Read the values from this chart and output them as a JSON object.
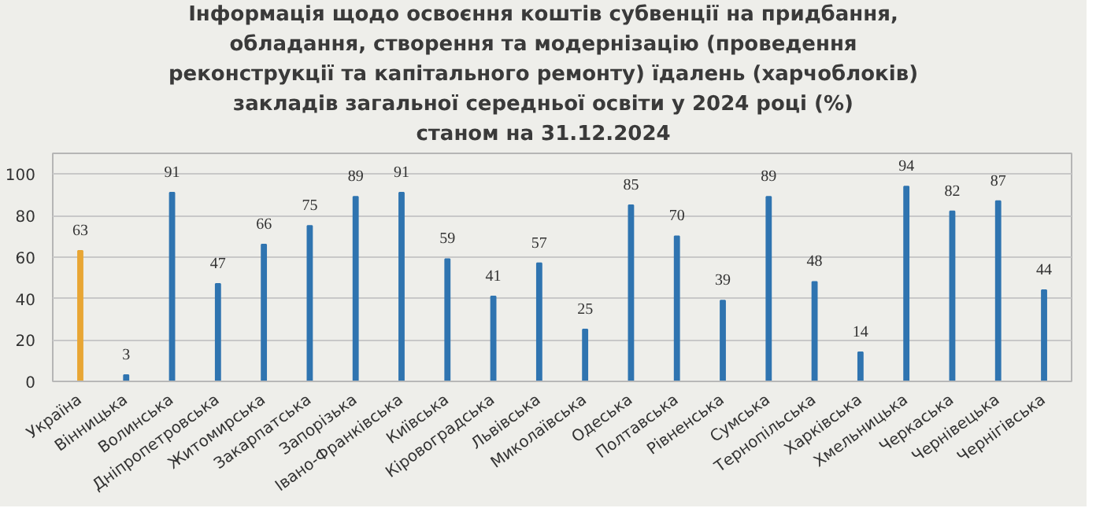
{
  "chart_data": {
    "type": "bar",
    "title": "Інформація щодо освоєння коштів субвенції  на придбання,\nобладання, створення та модернізацію (проведення\nреконструкції та капітального ремонту) їдалень (харчоблоків)\nзакладів загальної середньої освіти у 2024 році (%)\nстаном на 31.12.2024",
    "categories": [
      "Україна",
      "Вінницька",
      "Волинська",
      "Дніпропетровська",
      "Житомирська",
      "Закарпатська",
      "Запорізька",
      "Івано-Франківська",
      "Київська",
      "Кіровоградська",
      "Львівська",
      "Миколаївська",
      "Одеська",
      "Полтавська",
      "Рівненська",
      "Сумська",
      "Тернопільська",
      "Харківська",
      "Хмельницька",
      "Черкаська",
      "Чернівецька",
      "Чернігівська"
    ],
    "values": [
      63,
      3,
      91,
      47,
      66,
      75,
      89,
      91,
      59,
      41,
      57,
      25,
      85,
      70,
      39,
      89,
      48,
      14,
      94,
      82,
      87,
      44
    ],
    "colors": [
      "#e8a634",
      "#2f74b0",
      "#2f74b0",
      "#2f74b0",
      "#2f74b0",
      "#2f74b0",
      "#2f74b0",
      "#2f74b0",
      "#2f74b0",
      "#2f74b0",
      "#2f74b0",
      "#2f74b0",
      "#2f74b0",
      "#2f74b0",
      "#2f74b0",
      "#2f74b0",
      "#2f74b0",
      "#2f74b0",
      "#2f74b0",
      "#2f74b0",
      "#2f74b0",
      "#2f74b0"
    ],
    "ylim": [
      0,
      110
    ],
    "yticks": [
      0,
      20,
      40,
      60,
      80,
      100
    ],
    "grid": "y",
    "data_labels": true
  }
}
